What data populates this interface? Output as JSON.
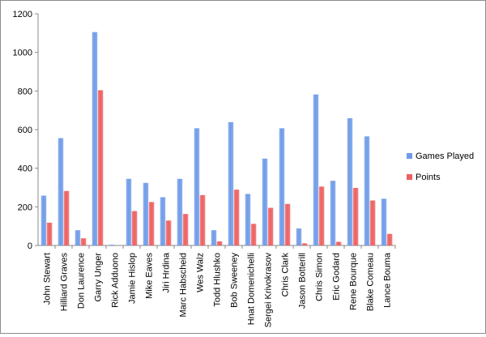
{
  "chart_data": {
    "type": "bar",
    "title": "",
    "xlabel": "",
    "ylabel": "",
    "ylim": [
      0,
      1200
    ],
    "yticks": [
      0,
      200,
      400,
      600,
      800,
      1000,
      1200
    ],
    "grid": false,
    "legend_position": "right",
    "categories": [
      "John Stewart",
      "Hilliard Graves",
      "Don Laurence",
      "Garry Unger",
      "Rick Adduono",
      "Jamie Hislop",
      "Mike Eaves",
      "Jiri Hrdina",
      "Marc Habscheid",
      "Wes Walz",
      "Todd Hlushko",
      "Bob Sweeney",
      "Hnat Domenichelli",
      "Sergei Krivokrasov",
      "Chris Clark",
      "Jason Botterill",
      "Chris Simon",
      "Eric Godard",
      "Rene Bourque",
      "Blake Comeau",
      "Lance Bouma"
    ],
    "series": [
      {
        "name": "Games Played",
        "color": "#6f9be8",
        "values": [
          258,
          556,
          79,
          1105,
          4,
          345,
          324,
          250,
          345,
          607,
          79,
          639,
          267,
          450,
          607,
          88,
          782,
          335,
          659,
          565,
          242
        ]
      },
      {
        "name": "Points",
        "color": "#ee5f5f",
        "values": [
          118,
          282,
          37,
          804,
          0,
          178,
          225,
          129,
          163,
          261,
          21,
          289,
          112,
          195,
          215,
          11,
          305,
          19,
          298,
          233,
          60
        ]
      }
    ]
  }
}
